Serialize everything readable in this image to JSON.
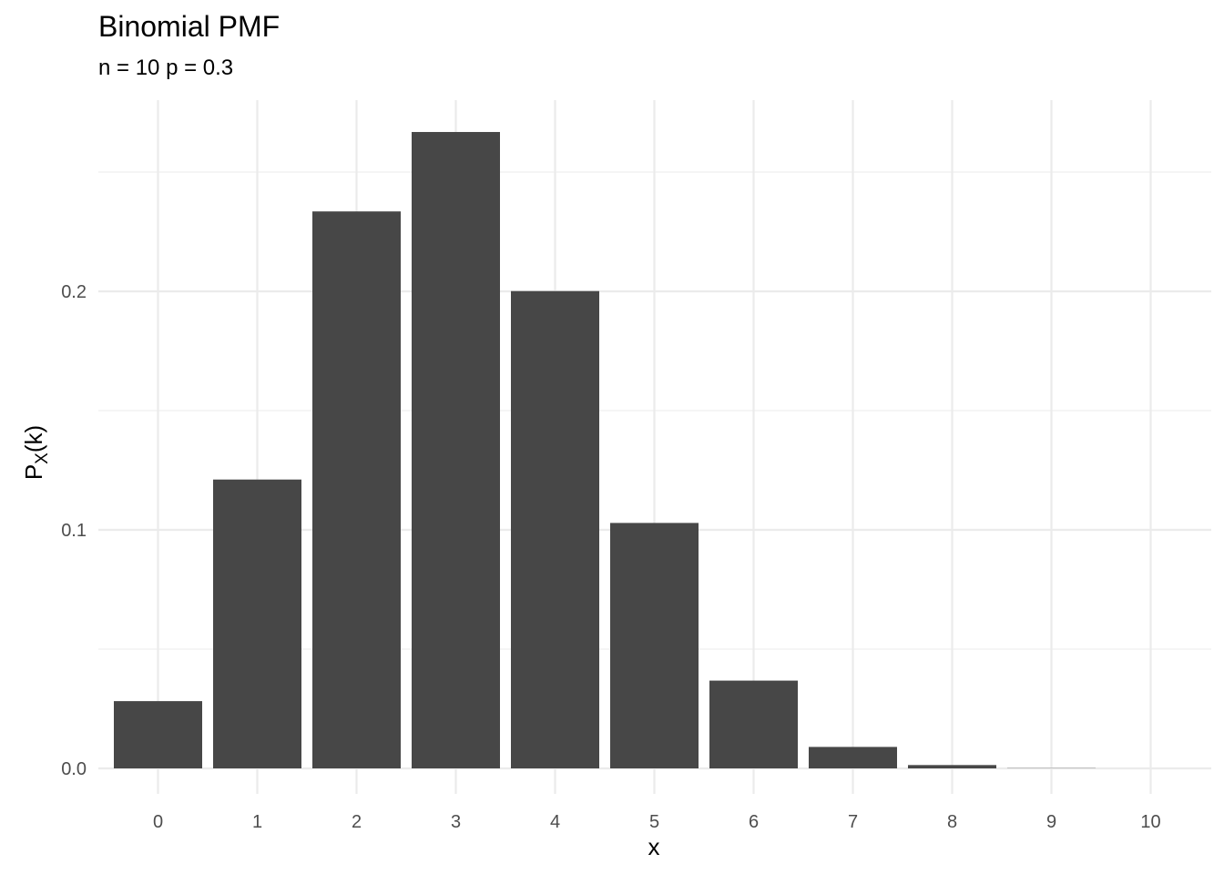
{
  "chart_data": {
    "type": "bar",
    "title": "Binomial PMF",
    "subtitle": "n = 10 p = 0.3",
    "xlabel": "x",
    "ylabel": {
      "main": "P",
      "sub": "X",
      "suffix": "(k)"
    },
    "categories": [
      "0",
      "1",
      "2",
      "3",
      "4",
      "5",
      "6",
      "7",
      "8",
      "9",
      "10"
    ],
    "values": [
      0.0282,
      0.1211,
      0.2335,
      0.2668,
      0.2001,
      0.1029,
      0.0368,
      0.009,
      0.0014,
      0.0001,
      0.0
    ],
    "ylim": [
      0,
      0.27
    ],
    "yticks": [
      0.0,
      0.1,
      0.2
    ],
    "ytick_labels": [
      "0.0",
      "0.1",
      "0.2"
    ],
    "grid": true,
    "bar_color": "#474747",
    "grid_color": "#ebebeb"
  }
}
